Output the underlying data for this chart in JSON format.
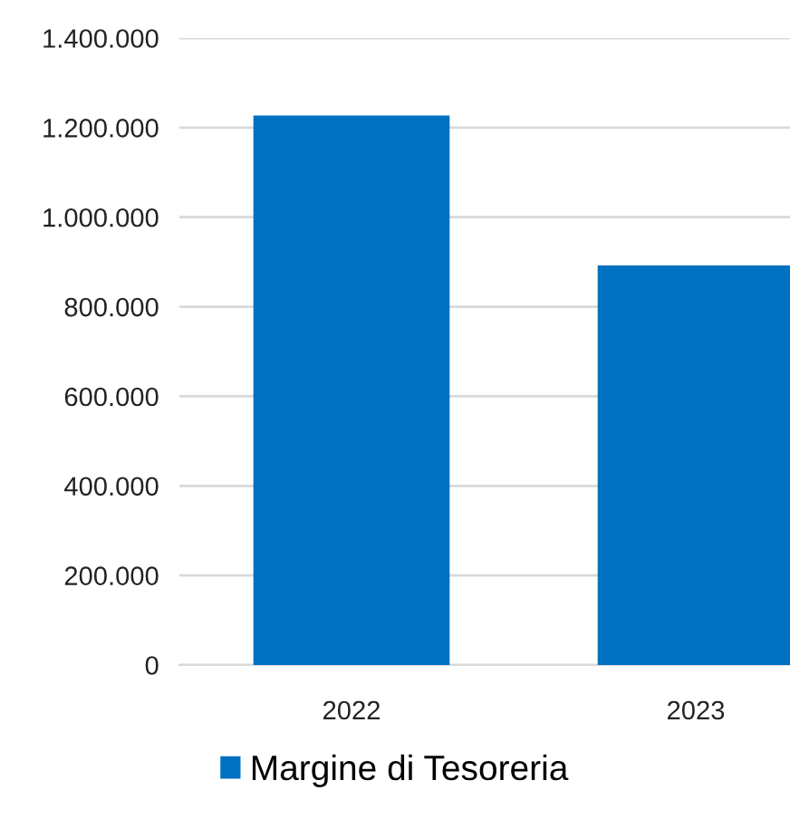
{
  "chart_data": {
    "type": "bar",
    "categories": [
      "2022",
      "2023"
    ],
    "series": [
      {
        "name": "Margine di Tesoreria",
        "color": "#0070c0",
        "values": [
          1227000,
          892000
        ]
      }
    ],
    "ylim": [
      0,
      1400000
    ],
    "yticks": [
      {
        "value": 0,
        "label": "0"
      },
      {
        "value": 200000,
        "label": "200.000"
      },
      {
        "value": 400000,
        "label": "400.000"
      },
      {
        "value": 600000,
        "label": "600.000"
      },
      {
        "value": 800000,
        "label": "800.000"
      },
      {
        "value": 1000000,
        "label": "1.000.000"
      },
      {
        "value": 1200000,
        "label": "1.200.000"
      },
      {
        "value": 1400000,
        "label": "1.400.000"
      }
    ],
    "grid": "y",
    "legend": "bottom"
  }
}
